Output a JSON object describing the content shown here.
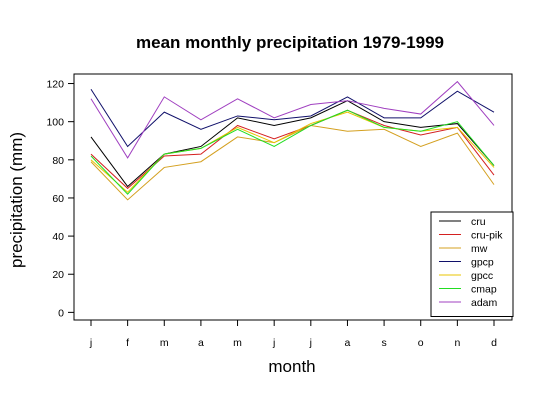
{
  "chart_data": {
    "type": "line",
    "title": "mean monthly precipitation 1979-1999",
    "xlabel": "month",
    "ylabel": "precipitation (mm)",
    "categories": [
      "j",
      "f",
      "m",
      "a",
      "m",
      "j",
      "j",
      "a",
      "s",
      "o",
      "n",
      "d"
    ],
    "ylim": [
      -4,
      125
    ],
    "yticks": [
      0,
      20,
      40,
      60,
      80,
      100,
      120
    ],
    "grid": false,
    "legend_position": "bottom-right",
    "series": [
      {
        "name": "cru",
        "color": "#000000",
        "values": [
          92,
          66,
          83,
          87,
          102,
          98,
          102,
          111,
          100,
          97,
          99,
          77
        ]
      },
      {
        "name": "cru-pik",
        "color": "#d42020",
        "values": [
          83,
          65,
          82,
          83,
          98,
          91,
          98,
          106,
          98,
          93,
          97,
          72
        ]
      },
      {
        "name": "mw",
        "color": "#d4a020",
        "values": [
          79,
          59,
          76,
          79,
          92,
          89,
          98,
          95,
          96,
          87,
          94,
          67
        ]
      },
      {
        "name": "gpcp",
        "color": "#10106a",
        "values": [
          117,
          87,
          105,
          96,
          103,
          101,
          103,
          113,
          102,
          102,
          116,
          105
        ]
      },
      {
        "name": "gpcc",
        "color": "#e8c400",
        "values": [
          80,
          63,
          83,
          86,
          97,
          89,
          99,
          105,
          97,
          95,
          97,
          76
        ]
      },
      {
        "name": "cmap",
        "color": "#22dd22",
        "values": [
          82,
          62,
          83,
          86,
          96,
          87,
          98,
          106,
          97,
          95,
          100,
          77
        ]
      },
      {
        "name": "adam",
        "color": "#a040c0",
        "values": [
          112,
          81,
          113,
          101,
          112,
          102,
          109,
          111,
          107,
          104,
          121,
          98
        ]
      }
    ]
  }
}
